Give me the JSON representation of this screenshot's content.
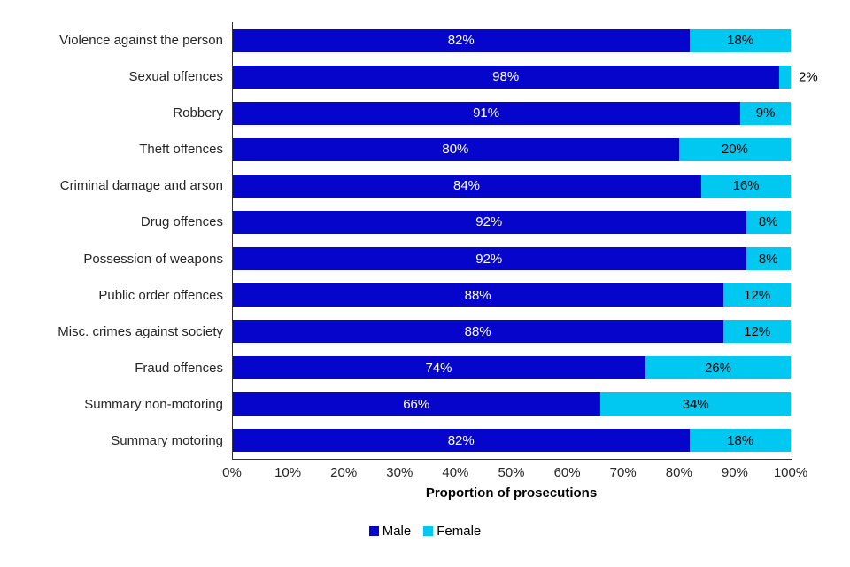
{
  "chart_data": {
    "type": "bar",
    "orientation": "horizontal-stacked",
    "title": "",
    "xlabel": "Proportion of prosecutions",
    "ylabel": "",
    "xlim": [
      0,
      100
    ],
    "grid": false,
    "legend_position": "bottom-center",
    "value_suffix": "%",
    "x_ticks": [
      "0%",
      "10%",
      "20%",
      "30%",
      "40%",
      "50%",
      "60%",
      "70%",
      "80%",
      "90%",
      "100%"
    ],
    "categories": [
      "Violence against the person",
      "Sexual offences",
      "Robbery",
      "Theft offences",
      "Criminal damage and arson",
      "Drug offences",
      "Possession of weapons",
      "Public order offences",
      "Misc. crimes against society",
      "Fraud offences",
      "Summary non-motoring",
      "Summary motoring"
    ],
    "series": [
      {
        "name": "Male",
        "color": "#0505cb",
        "label_color": "#ffffff",
        "values": [
          82,
          98,
          91,
          80,
          84,
          92,
          92,
          88,
          88,
          74,
          66,
          82
        ]
      },
      {
        "name": "Female",
        "color": "#00c8f0",
        "label_color": "#000000",
        "values": [
          18,
          2,
          9,
          20,
          16,
          8,
          8,
          12,
          12,
          26,
          34,
          18
        ]
      }
    ],
    "axis_color": "#333333",
    "text_color": "#262626"
  }
}
